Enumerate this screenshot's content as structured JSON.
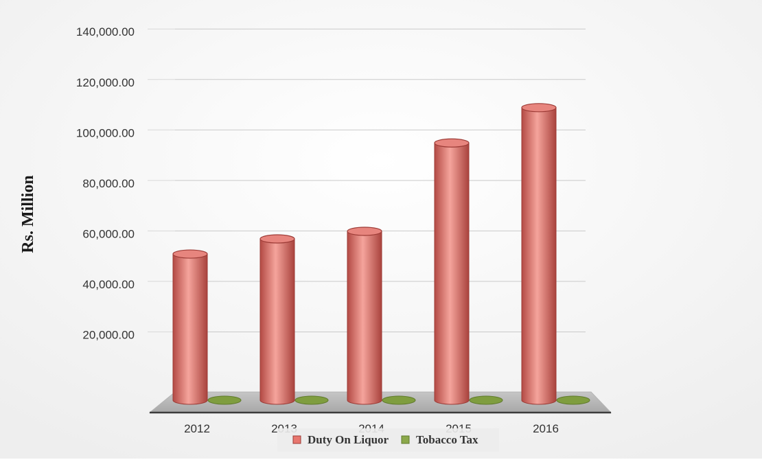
{
  "chart_data": {
    "type": "bar",
    "title": "",
    "xlabel": "",
    "ylabel": "Rs. Million",
    "categories": [
      "2012",
      "2013",
      "2014",
      "2015",
      "2016"
    ],
    "series": [
      {
        "name": "Duty On Liquor",
        "values": [
          59000,
          65000,
          68000,
          103000,
          117000
        ]
      },
      {
        "name": "Tobacco Tax",
        "values": [
          0,
          0,
          0,
          0,
          0
        ]
      }
    ],
    "ylim": [
      0,
      140000
    ],
    "yticks": [
      "20,000.00",
      "40,000.00",
      "60,000.00",
      "80,000.00",
      "100,000.00",
      "120,000.00",
      "140,000.00"
    ],
    "grid": true,
    "legend_position": "bottom",
    "colors": {
      "Duty On Liquor": "#e8776f",
      "Tobacco Tax": "#8ba84a"
    }
  }
}
